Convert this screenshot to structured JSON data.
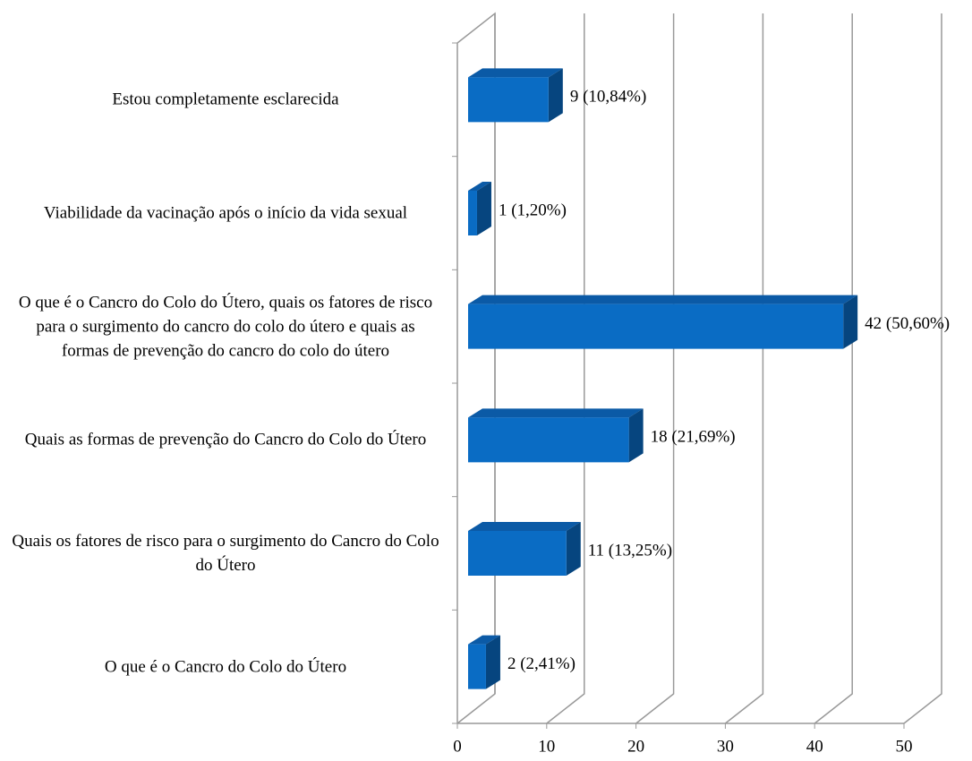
{
  "chart_data": {
    "type": "bar",
    "orientation": "horizontal",
    "categories": [
      "Estou completamente esclarecida",
      "Viabilidade da vacinação após o início da vida sexual",
      "O que é o Cancro do Colo do Útero, quais os fatores de risco para o surgimento do cancro do colo do útero e quais as formas de prevenção do cancro do colo do útero",
      "Quais as formas de prevenção do Cancro do Colo do Útero",
      "Quais os fatores de risco para o surgimento do Cancro do Colo do Útero",
      "O que é o Cancro do Colo do Útero"
    ],
    "values": [
      9,
      1,
      42,
      18,
      11,
      2
    ],
    "value_labels": [
      "9 (10,84%)",
      "1 (1,20%)",
      "42 (50,60%)",
      "18 (21,69%)",
      "11 (13,25%)",
      "2 (2,41%)"
    ],
    "color": "#0a6cc4",
    "xlim": [
      0,
      50
    ],
    "xticks": [
      0,
      10,
      20,
      30,
      40,
      50
    ],
    "grid": true
  }
}
